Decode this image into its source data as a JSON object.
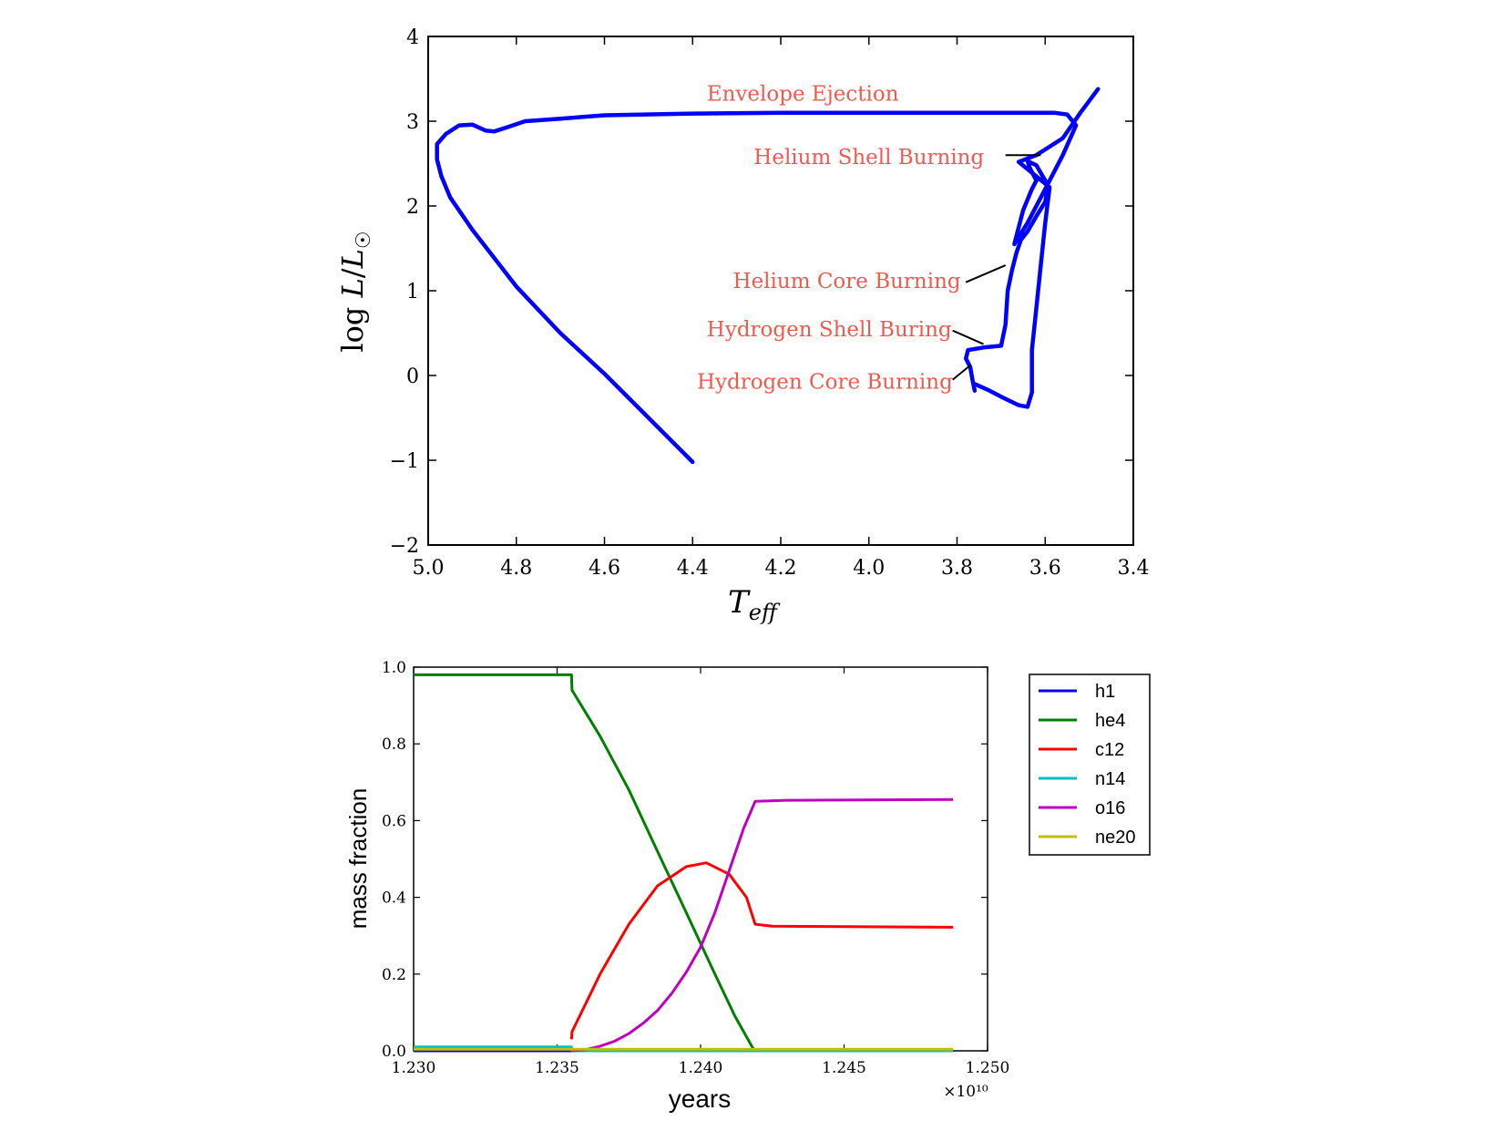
{
  "colors": {
    "blue": "#0000ff",
    "green": "#008000",
    "red": "#ff0000",
    "cyan": "#00bfbf",
    "magenta": "#bf00bf",
    "olive": "#bfbf00",
    "annotation": "#f05a50",
    "axis": "#000000"
  },
  "chart_data": [
    {
      "type": "line",
      "title": "",
      "xlabel": "T_eff",
      "ylabel": "log L/L_sun",
      "xlim": [
        5.0,
        3.4
      ],
      "ylim": [
        -2,
        4
      ],
      "x_inverted": true,
      "x_ticks": [
        5.0,
        4.8,
        4.6,
        4.4,
        4.2,
        4.0,
        3.8,
        3.6,
        3.4
      ],
      "x_tick_labels": [
        "5.0",
        "4.8",
        "4.6",
        "4.4",
        "4.2",
        "4.0",
        "3.8",
        "3.6",
        "3.4"
      ],
      "y_ticks": [
        -2,
        -1,
        0,
        1,
        2,
        3,
        4
      ],
      "y_tick_labels": [
        "−2",
        "−1",
        "0",
        "1",
        "2",
        "3",
        "4"
      ],
      "grid": false,
      "series": [
        {
          "color": "#0000ff",
          "points": [
            [
              3.76,
              -0.18
            ],
            [
              3.765,
              -0.05
            ],
            [
              3.77,
              0.1
            ],
            [
              3.78,
              0.2
            ],
            [
              3.775,
              0.3
            ],
            [
              3.74,
              0.33
            ],
            [
              3.7,
              0.35
            ],
            [
              3.69,
              0.6
            ],
            [
              3.685,
              1.0
            ],
            [
              3.675,
              1.25
            ],
            [
              3.665,
              1.45
            ],
            [
              3.655,
              1.6
            ],
            [
              3.64,
              1.7
            ],
            [
              3.62,
              1.88
            ],
            [
              3.6,
              2.05
            ],
            [
              3.595,
              2.2
            ],
            [
              3.6,
              2.3
            ],
            [
              3.62,
              2.48
            ],
            [
              3.64,
              2.53
            ],
            [
              3.635,
              2.45
            ],
            [
              3.62,
              2.3
            ],
            [
              3.63,
              2.2
            ],
            [
              3.65,
              1.95
            ],
            [
              3.66,
              1.75
            ],
            [
              3.67,
              1.55
            ],
            [
              3.64,
              1.8
            ],
            [
              3.6,
              2.2
            ],
            [
              3.56,
              2.6
            ],
            [
              3.53,
              2.95
            ],
            [
              3.55,
              3.08
            ],
            [
              3.58,
              3.1
            ],
            [
              3.65,
              3.1
            ],
            [
              3.8,
              3.1
            ],
            [
              4.0,
              3.1
            ],
            [
              4.2,
              3.1
            ],
            [
              4.4,
              3.09
            ],
            [
              4.6,
              3.07
            ],
            [
              4.7,
              3.03
            ],
            [
              4.78,
              3.0
            ],
            [
              4.82,
              2.93
            ],
            [
              4.85,
              2.88
            ],
            [
              4.87,
              2.89
            ],
            [
              4.9,
              2.96
            ],
            [
              4.93,
              2.95
            ],
            [
              4.96,
              2.85
            ],
            [
              4.98,
              2.73
            ],
            [
              4.98,
              2.55
            ],
            [
              4.97,
              2.35
            ],
            [
              4.95,
              2.1
            ],
            [
              4.9,
              1.72
            ],
            [
              4.8,
              1.05
            ],
            [
              4.7,
              0.5
            ],
            [
              4.6,
              0.02
            ],
            [
              4.5,
              -0.5
            ],
            [
              4.4,
              -1.02
            ]
          ],
          "points_b": [
            [
              3.76,
              -0.1
            ],
            [
              3.73,
              -0.17
            ],
            [
              3.7,
              -0.25
            ],
            [
              3.66,
              -0.35
            ],
            [
              3.64,
              -0.37
            ],
            [
              3.63,
              -0.2
            ],
            [
              3.63,
              0.3
            ],
            [
              3.62,
              0.8
            ],
            [
              3.61,
              1.3
            ],
            [
              3.6,
              1.8
            ],
            [
              3.59,
              2.22
            ],
            [
              3.66,
              2.52
            ],
            [
              3.62,
              2.6
            ],
            [
              3.56,
              2.8
            ],
            [
              3.52,
              3.1
            ],
            [
              3.48,
              3.38
            ]
          ]
        }
      ],
      "annotations": [
        {
          "text": "Envelope Ejection",
          "x": 4.15,
          "y": 3.33
        },
        {
          "text": "Helium Shell Burning",
          "x": 4.0,
          "y": 2.58,
          "arrow_to": [
            3.61,
            2.6
          ],
          "arrow_from": [
            3.69,
            2.6
          ]
        },
        {
          "text": "Helium Core Burning",
          "x": 4.05,
          "y": 1.12,
          "arrow_to": [
            3.69,
            1.3
          ],
          "arrow_from": [
            3.78,
            1.1
          ]
        },
        {
          "text": "Hydrogen Shell Buring",
          "x": 4.09,
          "y": 0.55,
          "arrow_to": [
            3.74,
            0.37
          ],
          "arrow_from": [
            3.81,
            0.53
          ]
        },
        {
          "text": "Hydrogen Core Burning",
          "x": 4.1,
          "y": -0.07,
          "arrow_to": [
            3.77,
            0.12
          ],
          "arrow_from": [
            3.81,
            -0.05
          ]
        }
      ]
    },
    {
      "type": "line",
      "title": "",
      "xlabel": "years",
      "ylabel": "mass fraction",
      "x_scale_note": "×10¹⁰",
      "xlim": [
        1.23,
        1.25
      ],
      "ylim": [
        0.0,
        1.0
      ],
      "x_ticks": [
        1.23,
        1.235,
        1.24,
        1.245,
        1.25
      ],
      "x_tick_labels": [
        "1.230",
        "1.235",
        "1.240",
        "1.245",
        "1.250"
      ],
      "y_ticks": [
        0.0,
        0.2,
        0.4,
        0.6,
        0.8,
        1.0
      ],
      "y_tick_labels": [
        "0.0",
        "0.2",
        "0.4",
        "0.6",
        "0.8",
        "1.0"
      ],
      "grid": false,
      "legend_position": "outside-right-top",
      "series": [
        {
          "name": "h1",
          "color": "#0000ff",
          "x": [
            1.23,
            1.2488
          ],
          "y": [
            0.0,
            0.0
          ]
        },
        {
          "name": "he4",
          "color": "#008000",
          "x": [
            1.23,
            1.2355,
            1.23552,
            1.2365,
            1.2375,
            1.2385,
            1.2395,
            1.2405,
            1.2412,
            1.2418,
            1.2419
          ],
          "y": [
            0.98,
            0.98,
            0.94,
            0.82,
            0.68,
            0.52,
            0.36,
            0.2,
            0.09,
            0.01,
            0.0
          ]
        },
        {
          "name": "c12",
          "color": "#ff0000",
          "x": [
            1.2355,
            1.23552,
            1.2365,
            1.2375,
            1.2385,
            1.2395,
            1.2402,
            1.241,
            1.2416,
            1.2419,
            1.2425,
            1.2488
          ],
          "y": [
            0.03,
            0.05,
            0.2,
            0.33,
            0.43,
            0.48,
            0.49,
            0.46,
            0.4,
            0.33,
            0.325,
            0.322
          ]
        },
        {
          "name": "n14",
          "color": "#00bfbf",
          "x": [
            1.23,
            1.2355,
            1.23552,
            1.2488
          ],
          "y": [
            0.01,
            0.01,
            0.0,
            0.0
          ]
        },
        {
          "name": "o16",
          "color": "#bf00bf",
          "x": [
            1.2355,
            1.236,
            1.2365,
            1.237,
            1.2375,
            1.238,
            1.2385,
            1.239,
            1.2395,
            1.24,
            1.2405,
            1.241,
            1.2415,
            1.2419,
            1.243,
            1.2488
          ],
          "y": [
            0.0,
            0.003,
            0.012,
            0.025,
            0.045,
            0.072,
            0.105,
            0.15,
            0.205,
            0.27,
            0.36,
            0.47,
            0.58,
            0.65,
            0.653,
            0.655
          ]
        },
        {
          "name": "ne20",
          "color": "#bfbf00",
          "x": [
            1.23,
            1.2488
          ],
          "y": [
            0.004,
            0.004
          ]
        }
      ]
    }
  ]
}
